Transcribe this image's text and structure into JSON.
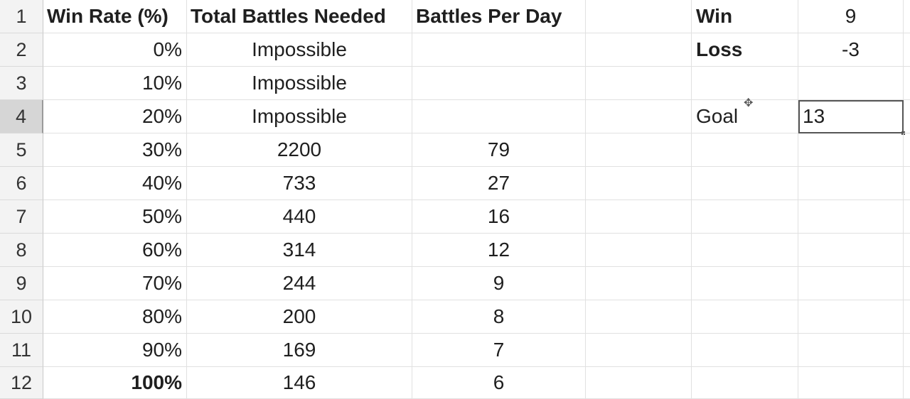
{
  "row_numbers": [
    "1",
    "2",
    "3",
    "4",
    "5",
    "6",
    "7",
    "8",
    "9",
    "10",
    "11",
    "12"
  ],
  "headers": {
    "win_rate": "Win Rate (%)",
    "total_battles": "Total Battles Needed",
    "battles_per_day": "Battles Per Day"
  },
  "rows": [
    {
      "win_rate": "0%",
      "total": "Impossible",
      "per_day": ""
    },
    {
      "win_rate": "10%",
      "total": "Impossible",
      "per_day": ""
    },
    {
      "win_rate": "20%",
      "total": "Impossible",
      "per_day": ""
    },
    {
      "win_rate": "30%",
      "total": "2200",
      "per_day": "79"
    },
    {
      "win_rate": "40%",
      "total": "733",
      "per_day": "27"
    },
    {
      "win_rate": "50%",
      "total": "440",
      "per_day": "16"
    },
    {
      "win_rate": "60%",
      "total": "314",
      "per_day": "12"
    },
    {
      "win_rate": "70%",
      "total": "244",
      "per_day": "9"
    },
    {
      "win_rate": "80%",
      "total": "200",
      "per_day": "8"
    },
    {
      "win_rate": "90%",
      "total": "169",
      "per_day": "7"
    },
    {
      "win_rate": "100%",
      "total": "146",
      "per_day": "6"
    }
  ],
  "params": {
    "win_label": "Win",
    "win_value": "9",
    "loss_label": "Loss",
    "loss_value": "-3",
    "goal_label": "Goal",
    "goal_value": "13"
  },
  "active_row": "4",
  "cursor_icon": "cell-cursor-plus-icon"
}
